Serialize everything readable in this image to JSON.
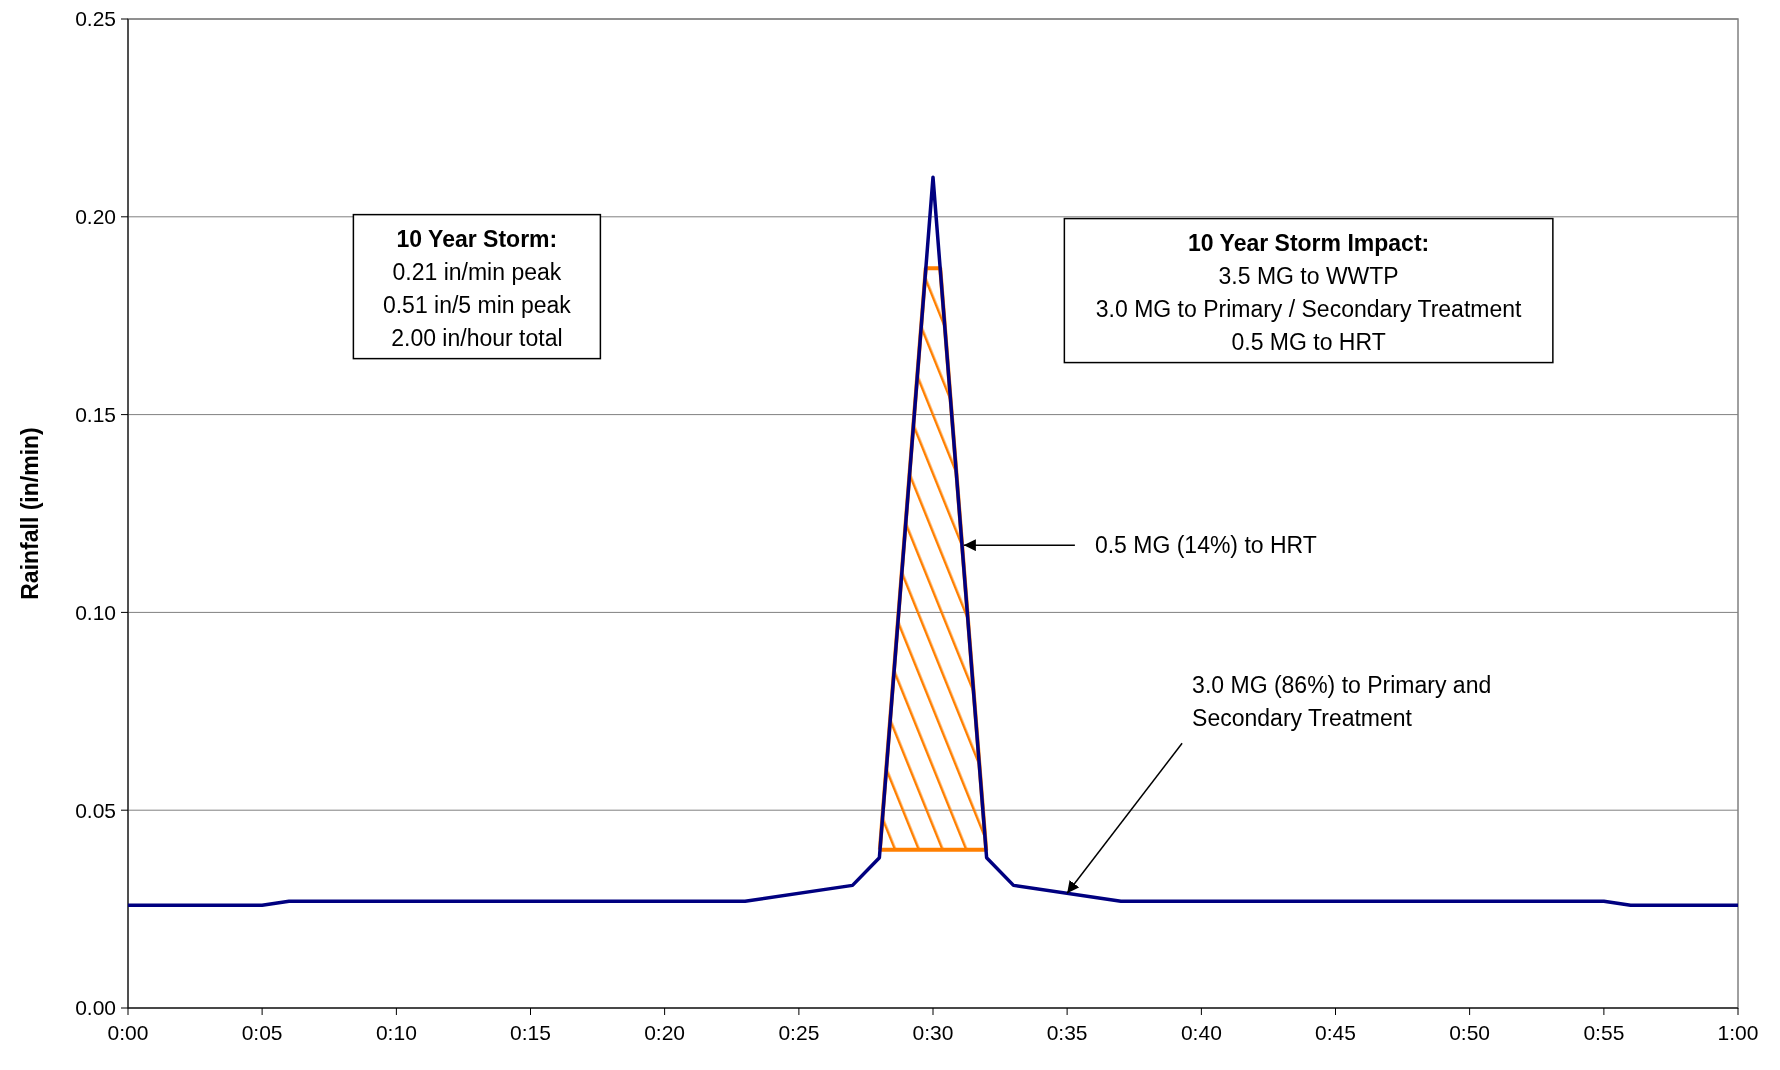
{
  "chart_data": {
    "type": "line",
    "ylabel": "Rainfall (in/min)",
    "x": [
      0,
      0.0833,
      0.1,
      0.3833,
      0.45,
      0.4667,
      0.5,
      0.5333,
      0.55,
      0.6167,
      0.9167,
      0.9333,
      1
    ],
    "series": [
      {
        "color": "#000080",
        "values": [
          0.026,
          0.026,
          0.027,
          0.027,
          0.031,
          0.038,
          0.21,
          0.038,
          0.031,
          0.027,
          0.027,
          0.026,
          0.026
        ]
      },
      {
        "type": "area",
        "color": "#ff7f00",
        "x": [
          0.467,
          0.4955,
          0.5045,
          0.533,
          0.467
        ],
        "values": [
          0.04,
          0.187,
          0.187,
          0.04,
          0.04
        ]
      }
    ],
    "xlim": [
      0,
      1
    ],
    "ylim": [
      0,
      0.25
    ],
    "xticks": [
      {
        "value": 0,
        "label": "0:00"
      },
      {
        "value": 0.0833,
        "label": "0:05"
      },
      {
        "value": 0.1667,
        "label": "0:10"
      },
      {
        "value": 0.25,
        "label": "0:15"
      },
      {
        "value": 0.3333,
        "label": "0:20"
      },
      {
        "value": 0.4167,
        "label": "0:25"
      },
      {
        "value": 0.5,
        "label": "0:30"
      },
      {
        "value": 0.5833,
        "label": "0:35"
      },
      {
        "value": 0.6667,
        "label": "0:40"
      },
      {
        "value": 0.75,
        "label": "0:45"
      },
      {
        "value": 0.8333,
        "label": "0:50"
      },
      {
        "value": 0.9167,
        "label": "0:55"
      },
      {
        "value": 1,
        "label": "1:00"
      }
    ],
    "yticks": [
      {
        "value": 0,
        "label": "0.00"
      },
      {
        "value": 0.05,
        "label": "0.05"
      },
      {
        "value": 0.1,
        "label": "0.10"
      },
      {
        "value": 0.15,
        "label": "0.15"
      },
      {
        "value": 0.2,
        "label": "0.20"
      },
      {
        "value": 0.25,
        "label": "0.25"
      }
    ],
    "grid": "y",
    "annotations": [
      "10 Year Storm:\n0.21 in/min peak\n0.51 in/5 min peak\n2.00 in/hour total",
      "10 Year Storm Impact:\n3.5 MG to WWTP\n3.0 MG to Primary / Secondary Treatment\n0.5 MG to HRT",
      {
        "text": "0.5 MG (14%) to HRT",
        "x": 0.5167,
        "y": 0.117
      },
      {
        "text": "3.0 MG (86%) to Primary and\nSecondary Treatment",
        "x": 0.5833,
        "y": 0.029
      }
    ]
  }
}
